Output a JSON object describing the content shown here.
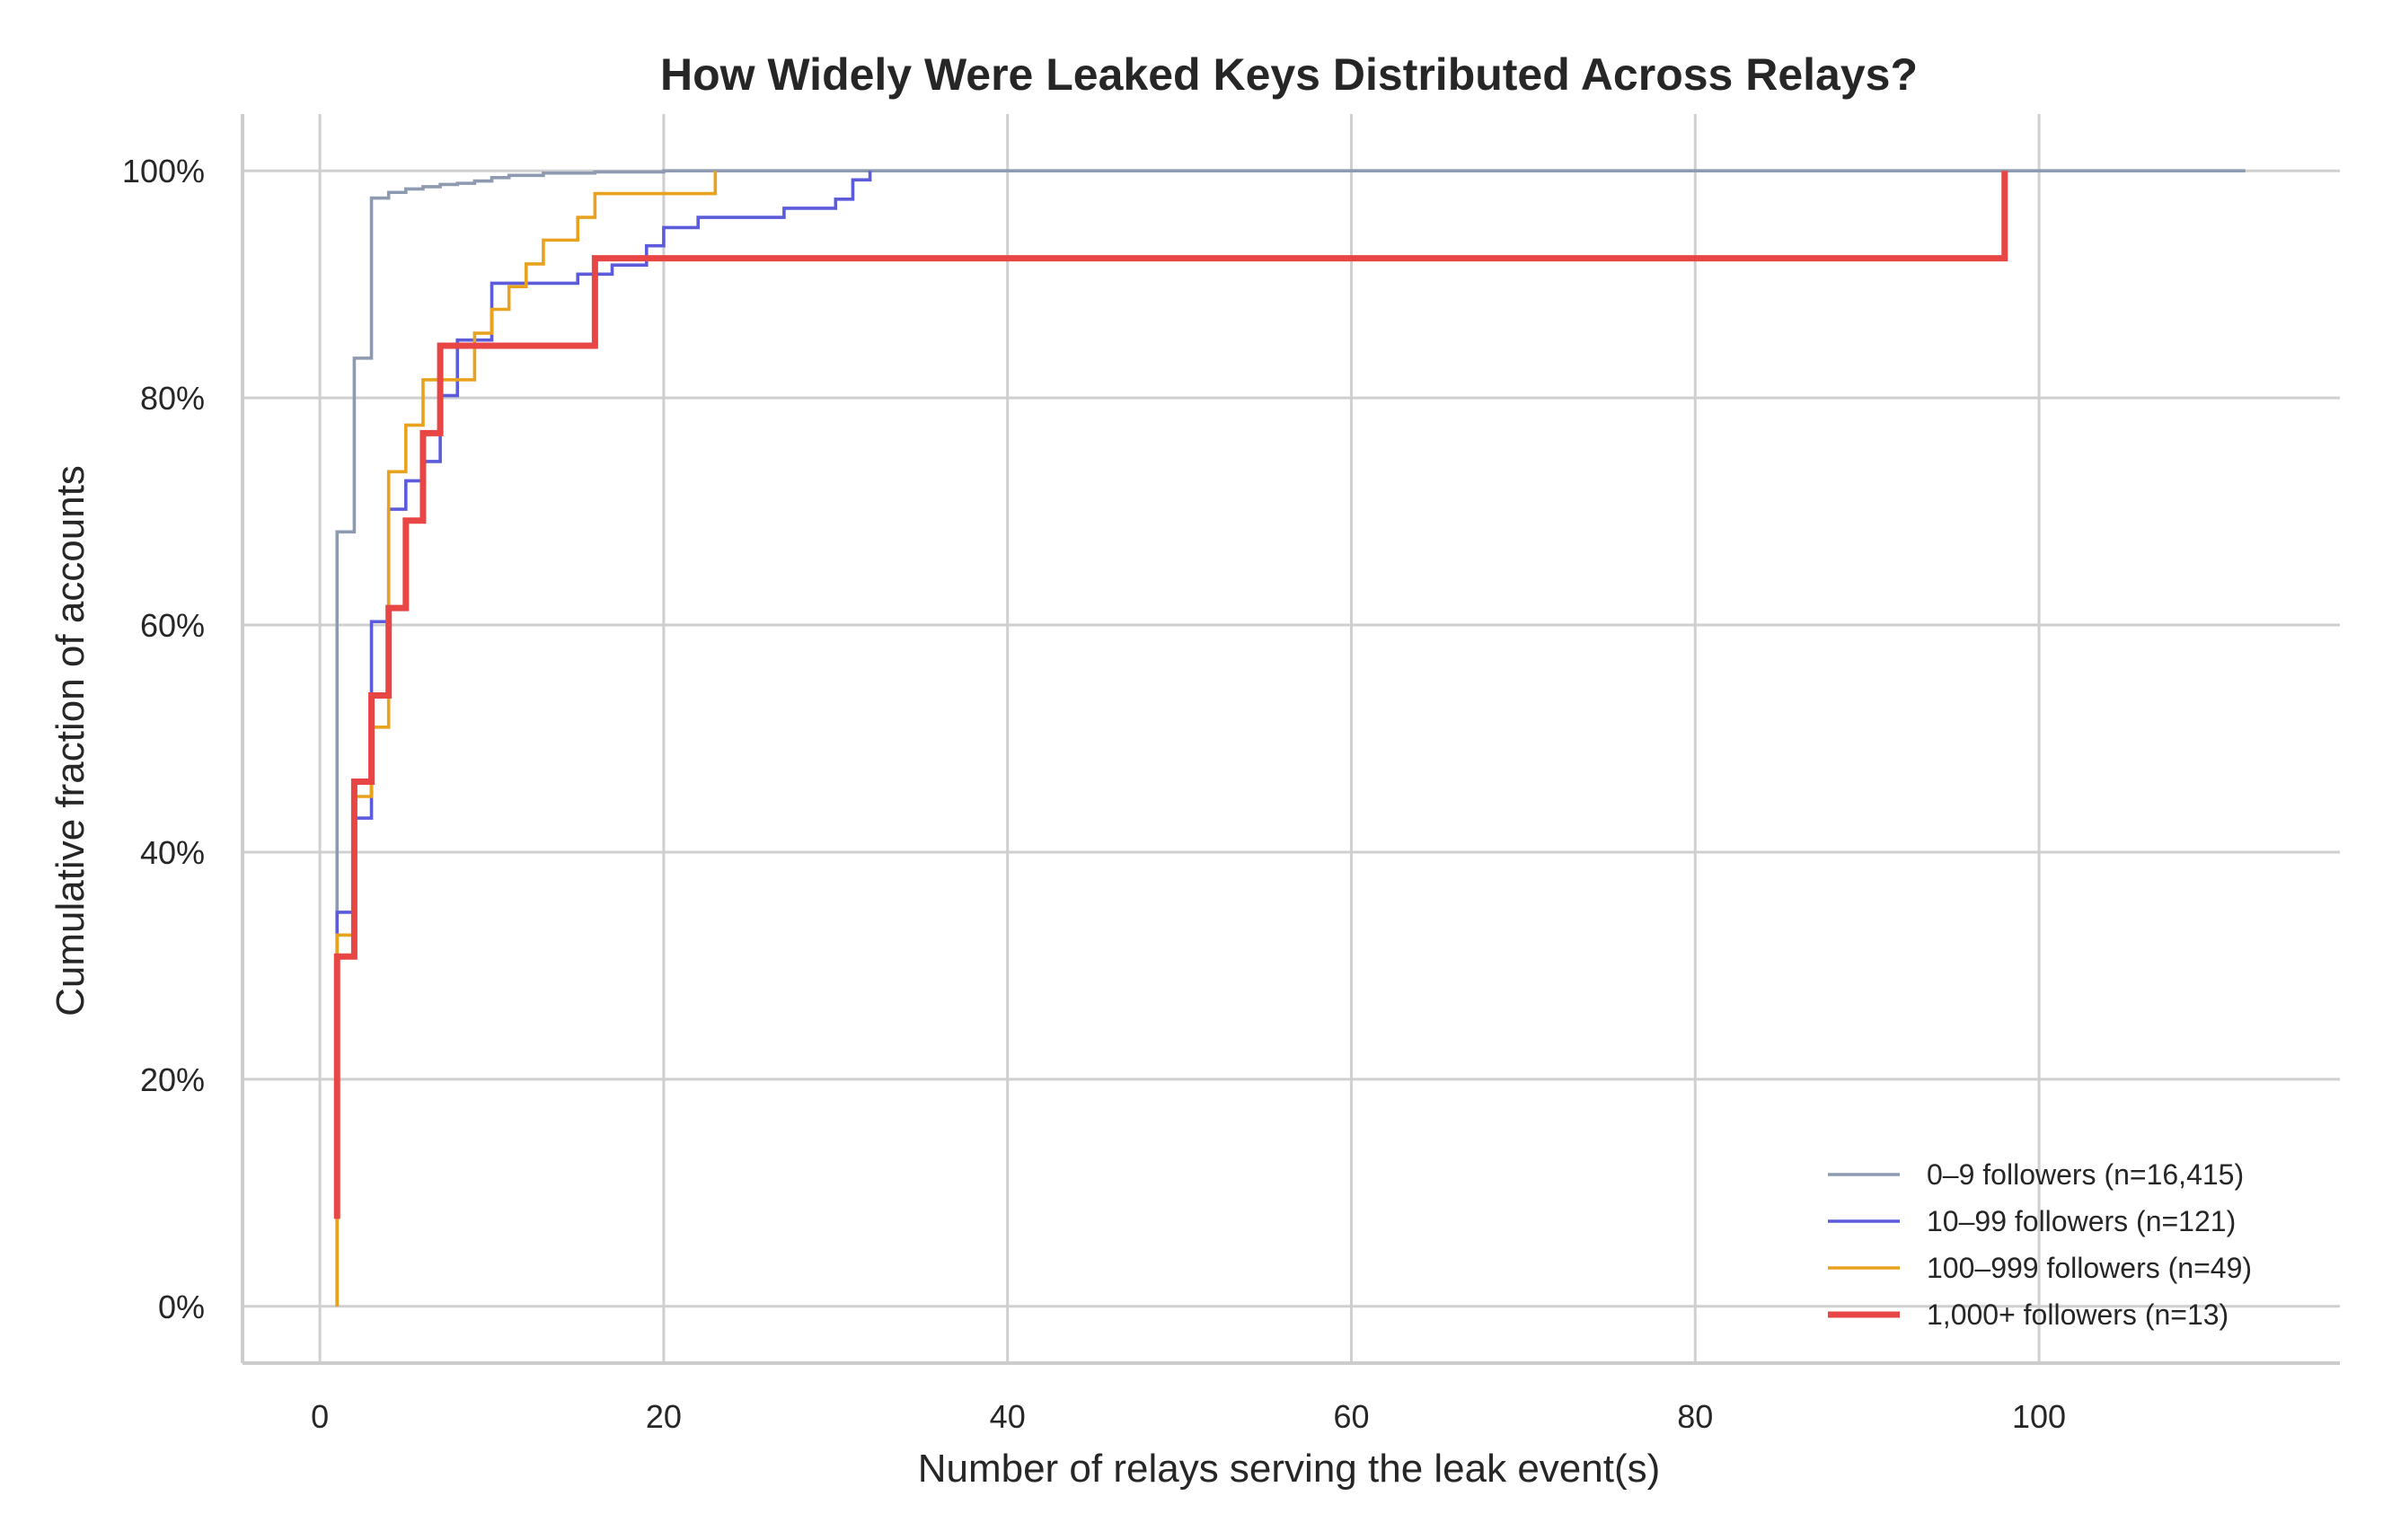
{
  "chart_data": {
    "type": "line",
    "step": true,
    "title": "How Widely Were Leaked Keys Distributed Across Relays?",
    "xlabel": "Number of relays serving the leak event(s)",
    "ylabel": "Cumulative fraction of accounts",
    "xlim": [
      -4.5,
      117.5
    ],
    "ylim": [
      -0.05,
      1.05
    ],
    "x_ticks": [
      0,
      20,
      40,
      60,
      80,
      100
    ],
    "x_tick_labels": [
      "0",
      "20",
      "40",
      "60",
      "80",
      "100"
    ],
    "y_ticks": [
      0,
      0.2,
      0.4,
      0.6,
      0.8,
      1.0
    ],
    "y_tick_labels": [
      "0%",
      "20%",
      "40%",
      "60%",
      "80%",
      "100%"
    ],
    "grid": true,
    "legend_position": "lower-right",
    "series": [
      {
        "name": "0–9 followers (n=16,415)",
        "color": "#8e9ab0",
        "width": "normal",
        "points": [
          [
            1,
            0
          ],
          [
            1,
            0.682
          ],
          [
            2,
            0.835
          ],
          [
            3,
            0.976
          ],
          [
            4,
            0.981
          ],
          [
            5,
            0.984
          ],
          [
            6,
            0.986
          ],
          [
            7,
            0.988
          ],
          [
            8,
            0.989
          ],
          [
            9,
            0.991
          ],
          [
            10,
            0.994
          ],
          [
            11,
            0.996
          ],
          [
            13,
            0.998
          ],
          [
            16,
            0.999
          ],
          [
            20,
            1.0
          ],
          [
            112,
            1.0
          ]
        ]
      },
      {
        "name": "10–99 followers (n=121)",
        "color": "#5b5bdb",
        "width": "normal",
        "points": [
          [
            1,
            0
          ],
          [
            1,
            0.347
          ],
          [
            2,
            0.43
          ],
          [
            3,
            0.603
          ],
          [
            4,
            0.702
          ],
          [
            5,
            0.727
          ],
          [
            6,
            0.744
          ],
          [
            7,
            0.802
          ],
          [
            8,
            0.851
          ],
          [
            10,
            0.901
          ],
          [
            15,
            0.909
          ],
          [
            17,
            0.917
          ],
          [
            19,
            0.934
          ],
          [
            20,
            0.95
          ],
          [
            22,
            0.959
          ],
          [
            27,
            0.967
          ],
          [
            30,
            0.975
          ],
          [
            31,
            0.992
          ],
          [
            32,
            1.0
          ]
        ]
      },
      {
        "name": "100–999 followers (n=49)",
        "color": "#e8a21e",
        "width": "normal",
        "points": [
          [
            1,
            0
          ],
          [
            1,
            0.327
          ],
          [
            2,
            0.449
          ],
          [
            3,
            0.51
          ],
          [
            4,
            0.735
          ],
          [
            5,
            0.776
          ],
          [
            6,
            0.816
          ],
          [
            9,
            0.857
          ],
          [
            10,
            0.878
          ],
          [
            11,
            0.898
          ],
          [
            12,
            0.918
          ],
          [
            13,
            0.939
          ],
          [
            15,
            0.959
          ],
          [
            16,
            0.98
          ],
          [
            23,
            1.0
          ]
        ]
      },
      {
        "name": "1,000+ followers (n=13)",
        "color": "#e84545",
        "width": "thick",
        "points": [
          [
            1,
            0.077
          ],
          [
            1,
            0.308
          ],
          [
            2,
            0.462
          ],
          [
            3,
            0.538
          ],
          [
            4,
            0.615
          ],
          [
            5,
            0.692
          ],
          [
            6,
            0.769
          ],
          [
            7,
            0.846
          ],
          [
            16,
            0.923
          ],
          [
            98,
            1.0
          ]
        ]
      }
    ]
  }
}
